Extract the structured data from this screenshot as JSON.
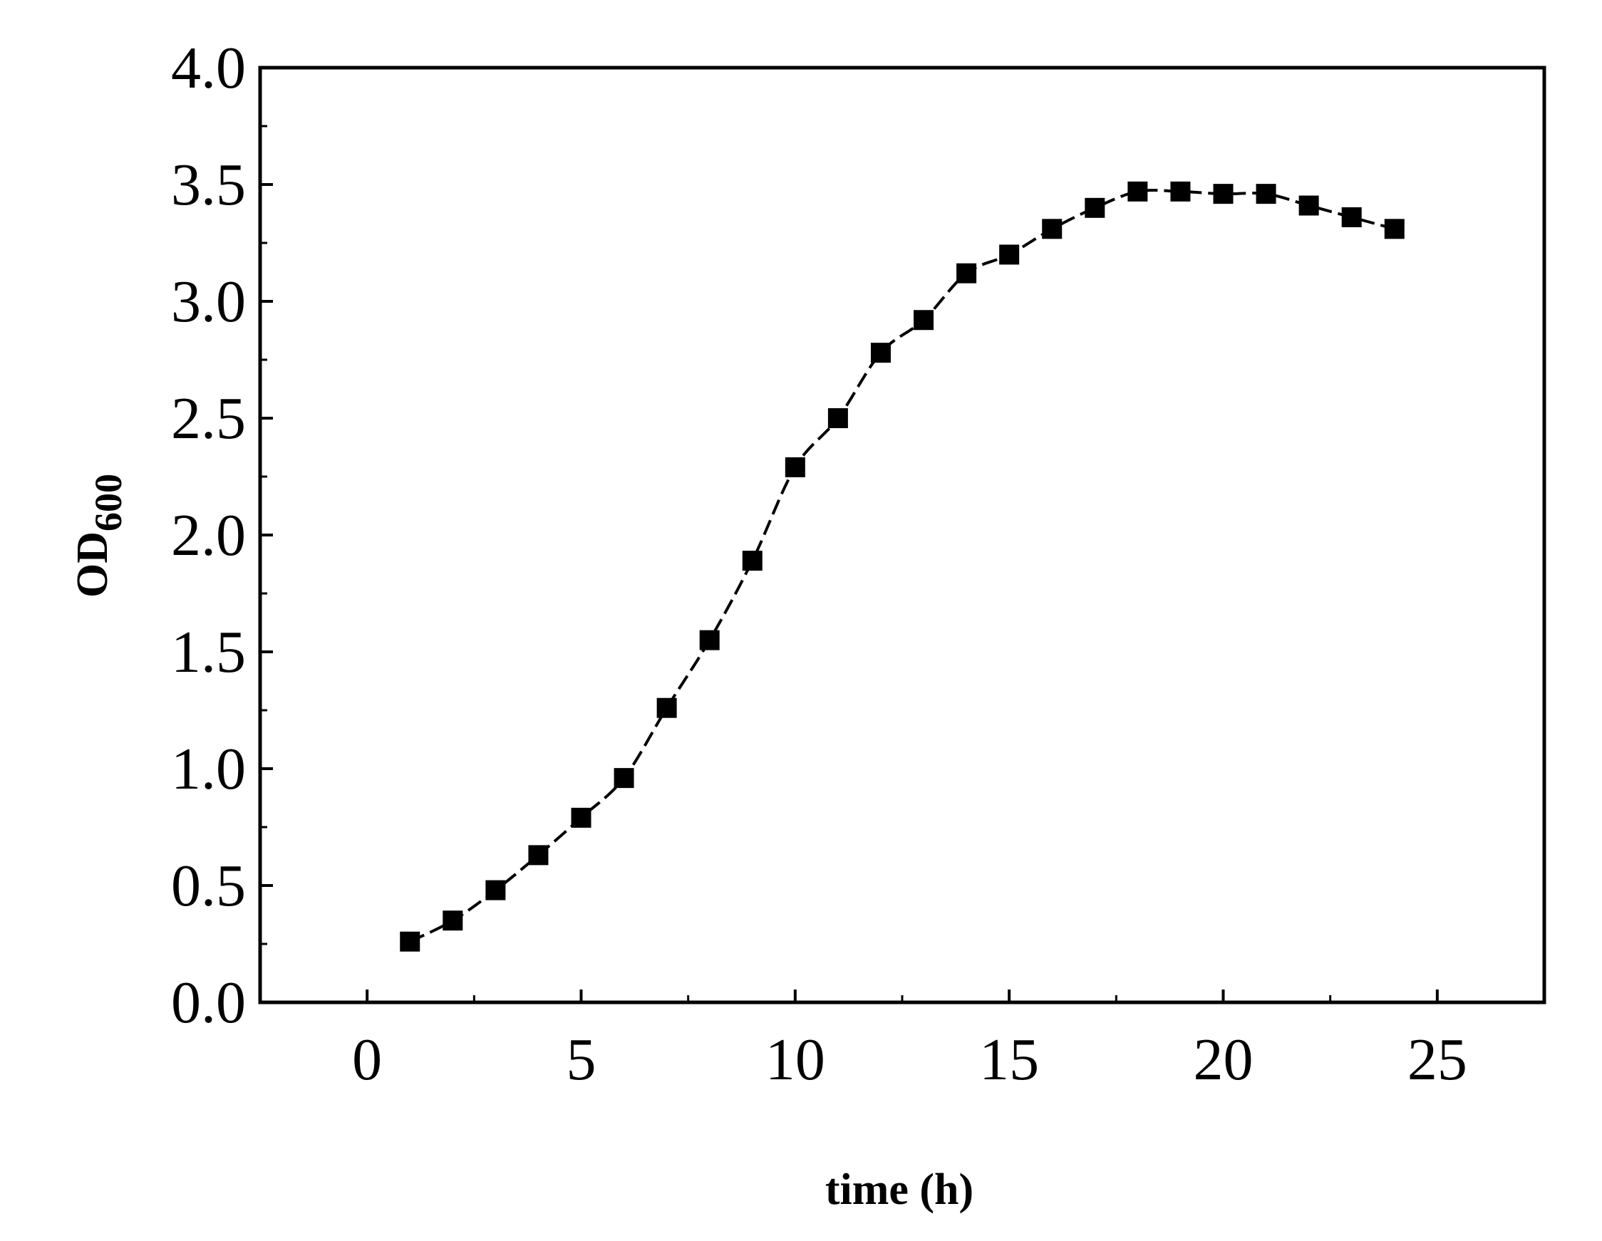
{
  "chart_data": {
    "type": "line",
    "title": "",
    "xlabel": "time (h)",
    "ylabel": {
      "main": "OD",
      "sub": "600"
    },
    "xlim": [
      -2.5,
      27.5
    ],
    "ylim": [
      0.0,
      4.0
    ],
    "xticks": [
      0,
      5,
      10,
      15,
      20,
      25
    ],
    "xtick_labels": [
      "0",
      "5",
      "10",
      "15",
      "20",
      "25"
    ],
    "yticks": [
      0.0,
      0.5,
      1.0,
      1.5,
      2.0,
      2.5,
      3.0,
      3.5,
      4.0
    ],
    "ytick_labels": [
      "0.0",
      "0.5",
      "1.0",
      "1.5",
      "2.0",
      "2.5",
      "3.0",
      "3.5",
      "4.0"
    ],
    "grid": false,
    "legend": "none",
    "series": [
      {
        "marker": "square",
        "line_style": "dashed",
        "color": "#000000",
        "x": [
          1,
          2,
          3,
          4,
          5,
          6,
          7,
          8,
          9,
          10,
          11,
          12,
          13,
          14,
          15,
          16,
          17,
          18,
          19,
          20,
          21,
          22,
          23,
          24
        ],
        "values": [
          0.26,
          0.35,
          0.48,
          0.63,
          0.79,
          0.96,
          1.26,
          1.55,
          1.89,
          2.29,
          2.5,
          2.78,
          2.92,
          3.12,
          3.2,
          3.31,
          3.4,
          3.47,
          3.47,
          3.46,
          3.46,
          3.41,
          3.36,
          3.31
        ]
      }
    ]
  }
}
